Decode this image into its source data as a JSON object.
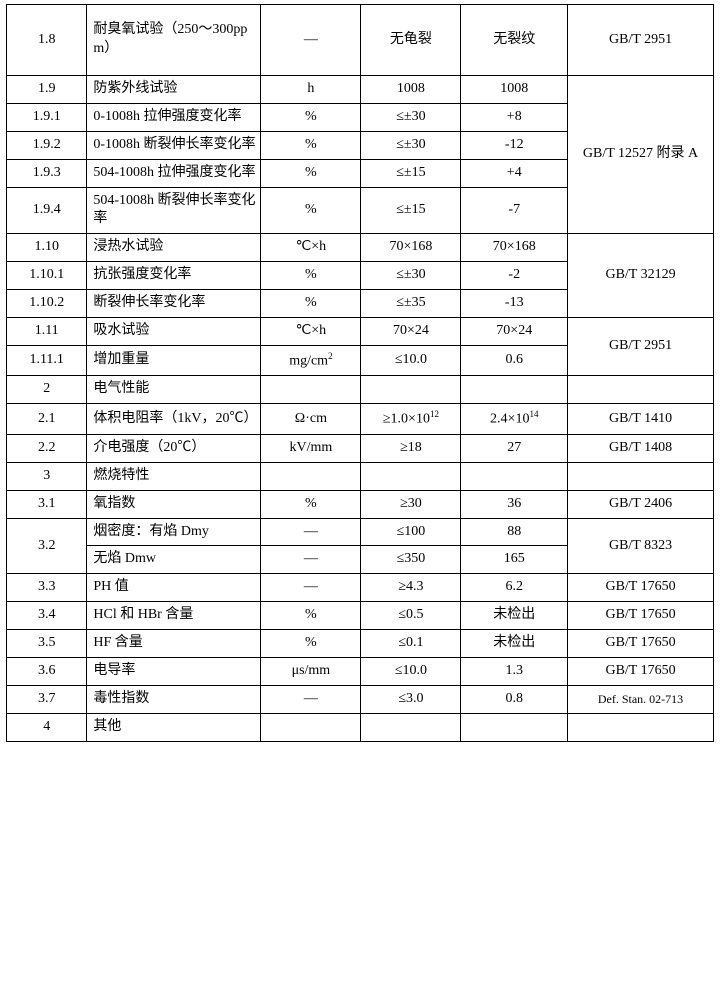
{
  "rows": {
    "r1_8": {
      "num": "1.8",
      "name": "耐臭氧试验（250～300ppm）",
      "unit": "—",
      "spec": "无龟裂",
      "val": "无裂纹",
      "std": "GB/T 2951"
    },
    "r1_9": {
      "num": "1.9",
      "name": "防紫外线试验",
      "unit": "h",
      "spec": "1008",
      "val": "1008"
    },
    "r1_9_1": {
      "num": "1.9.1",
      "name": "0-1008h 拉伸强度变化率",
      "unit": "%",
      "spec": "≤±30",
      "val": "+8"
    },
    "r1_9_2": {
      "num": "1.9.2",
      "name": "0-1008h 断裂伸长率变化率",
      "unit": "%",
      "spec": "≤±30",
      "val": "-12"
    },
    "r1_9_3": {
      "num": "1.9.3",
      "name": "504-1008h 拉伸强度变化率",
      "unit": "%",
      "spec": "≤±15",
      "val": "+4"
    },
    "r1_9_4": {
      "num": "1.9.4",
      "name": "504-1008h 断裂伸长率变化率",
      "unit": "%",
      "spec": "≤±15",
      "val": "-7"
    },
    "std_12527": "GB/T 12527 附录 A",
    "r1_10": {
      "num": "1.10",
      "name": "浸热水试验",
      "unit": "℃×h",
      "spec": "70×168",
      "val": "70×168"
    },
    "r1_10_1": {
      "num": "1.10.1",
      "name": "抗张强度变化率",
      "unit": "%",
      "spec": "≤±30",
      "val": "-2"
    },
    "r1_10_2": {
      "num": "1.10.2",
      "name": "断裂伸长率变化率",
      "unit": "%",
      "spec": "≤±35",
      "val": "-13"
    },
    "std_32129": "GB/T 32129",
    "r1_11": {
      "num": "1.11",
      "name": "吸水试验",
      "unit": "℃×h",
      "spec": "70×24",
      "val": "70×24"
    },
    "r1_11_1": {
      "num": "1.11.1",
      "name": "增加重量",
      "unit_html": "mg/cm²",
      "spec": "≤10.0",
      "val": "0.6"
    },
    "std_2951b": "GB/T 2951",
    "r2": {
      "num": "2",
      "name": "电气性能"
    },
    "r2_1": {
      "num": "2.1",
      "name": "体积电阻率（1kV，20℃）",
      "unit": "Ω·cm",
      "spec_html": "≥1.0×10¹²",
      "val_html": "2.4×10¹⁴",
      "std": "GB/T 1410"
    },
    "r2_2": {
      "num": "2.2",
      "name": "介电强度（20℃）",
      "unit": "kV/mm",
      "spec": "≥18",
      "val": "27",
      "std": "GB/T 1408"
    },
    "r3": {
      "num": "3",
      "name": "燃烧特性"
    },
    "r3_1": {
      "num": "3.1",
      "name": "氧指数",
      "unit": "%",
      "spec": "≥30",
      "val": "36",
      "std": "GB/T 2406"
    },
    "r3_2": {
      "num": "3.2",
      "name_a": "烟密度：有焰 Dmy",
      "name_b": "无焰 Dmw",
      "unit_a": "—",
      "spec_a": "≤100",
      "val_a": "88",
      "unit_b": "—",
      "spec_b": "≤350",
      "val_b": "165",
      "std": "GB/T 8323"
    },
    "r3_3": {
      "num": "3.3",
      "name": "PH 值",
      "unit": "—",
      "spec": "≥4.3",
      "val": "6.2",
      "std": "GB/T 17650"
    },
    "r3_4": {
      "num": "3.4",
      "name": "HCl 和 HBr 含量",
      "unit": "%",
      "spec": "≤0.5",
      "val": "未检出",
      "std": "GB/T 17650"
    },
    "r3_5": {
      "num": "3.5",
      "name": "HF 含量",
      "unit": "%",
      "spec": "≤0.1",
      "val": "未检出",
      "std": "GB/T 17650"
    },
    "r3_6": {
      "num": "3.6",
      "name": "电导率",
      "unit": "μs/mm",
      "spec": "≤10.0",
      "val": "1.3",
      "std": "GB/T 17650"
    },
    "r3_7": {
      "num": "3.7",
      "name": "毒性指数",
      "unit": "—",
      "spec": "≤3.0",
      "val": "0.8",
      "std": "Def. Stan. 02-713"
    },
    "r4": {
      "num": "4",
      "name": "其他"
    }
  }
}
